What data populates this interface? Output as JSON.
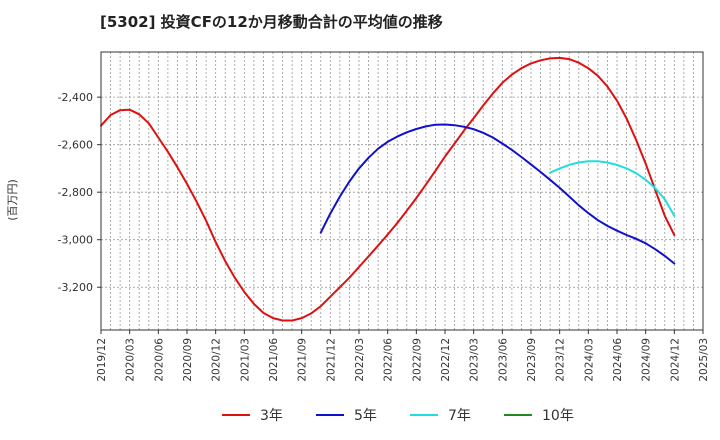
{
  "title": "[5302]  投資CFの12か月移動合計の平均値の推移",
  "chart_data": {
    "type": "line",
    "ylabel": "(百万円)",
    "xlabel": "",
    "ylim": [
      -3380,
      -2210
    ],
    "y_ticks": [
      -2400,
      -2600,
      -2800,
      -3000,
      -3200
    ],
    "y_tick_labels": [
      "-2,400",
      "-2,600",
      "-2,800",
      "-3,000",
      "-3,200"
    ],
    "x_ticks": [
      "2019/12",
      "2020/03",
      "2020/06",
      "2020/09",
      "2020/12",
      "2021/03",
      "2021/06",
      "2021/09",
      "2021/12",
      "2022/03",
      "2022/06",
      "2022/09",
      "2022/12",
      "2023/03",
      "2023/06",
      "2023/09",
      "2023/12",
      "2024/03",
      "2024/06",
      "2024/09",
      "2024/12",
      "2025/03"
    ],
    "grid": true,
    "legend_position": "bottom",
    "series": [
      {
        "name": "3年",
        "color": "#dd1111",
        "x": [
          "2019/12",
          "2020/01",
          "2020/02",
          "2020/03",
          "2020/04",
          "2020/05",
          "2020/06",
          "2020/07",
          "2020/08",
          "2020/09",
          "2020/10",
          "2020/11",
          "2020/12",
          "2021/01",
          "2021/02",
          "2021/03",
          "2021/04",
          "2021/05",
          "2021/06",
          "2021/07",
          "2021/08",
          "2021/09",
          "2021/10",
          "2021/11",
          "2021/12",
          "2022/01",
          "2022/02",
          "2022/03",
          "2022/04",
          "2022/05",
          "2022/06",
          "2022/07",
          "2022/08",
          "2022/09",
          "2022/10",
          "2022/11",
          "2022/12",
          "2023/01",
          "2023/02",
          "2023/03",
          "2023/04",
          "2023/05",
          "2023/06",
          "2023/07",
          "2023/08",
          "2023/09",
          "2023/10",
          "2023/11",
          "2023/12",
          "2024/01",
          "2024/02",
          "2024/03",
          "2024/04",
          "2024/05",
          "2024/06",
          "2024/07",
          "2024/08",
          "2024/09",
          "2024/10",
          "2024/11",
          "2024/12"
        ],
        "values": [
          -2520,
          -2475,
          -2455,
          -2453,
          -2472,
          -2510,
          -2570,
          -2630,
          -2695,
          -2765,
          -2840,
          -2920,
          -3010,
          -3090,
          -3160,
          -3220,
          -3270,
          -3308,
          -3330,
          -3340,
          -3340,
          -3330,
          -3310,
          -3280,
          -3240,
          -3200,
          -3160,
          -3115,
          -3070,
          -3025,
          -2978,
          -2930,
          -2878,
          -2825,
          -2768,
          -2710,
          -2650,
          -2595,
          -2540,
          -2488,
          -2435,
          -2385,
          -2340,
          -2305,
          -2278,
          -2258,
          -2245,
          -2237,
          -2235,
          -2240,
          -2255,
          -2278,
          -2310,
          -2355,
          -2415,
          -2490,
          -2580,
          -2680,
          -2790,
          -2900,
          -2980
        ]
      },
      {
        "name": "5年",
        "color": "#1111cc",
        "x": [
          "2021/11",
          "2021/12",
          "2022/01",
          "2022/02",
          "2022/03",
          "2022/04",
          "2022/05",
          "2022/06",
          "2022/07",
          "2022/08",
          "2022/09",
          "2022/10",
          "2022/11",
          "2022/12",
          "2023/01",
          "2023/02",
          "2023/03",
          "2023/04",
          "2023/05",
          "2023/06",
          "2023/07",
          "2023/08",
          "2023/09",
          "2023/10",
          "2023/11",
          "2023/12",
          "2024/01",
          "2024/02",
          "2024/03",
          "2024/04",
          "2024/05",
          "2024/06",
          "2024/07",
          "2024/08",
          "2024/09",
          "2024/10",
          "2024/11",
          "2024/12"
        ],
        "values": [
          -2970,
          -2890,
          -2818,
          -2755,
          -2700,
          -2655,
          -2617,
          -2588,
          -2566,
          -2548,
          -2534,
          -2523,
          -2516,
          -2515,
          -2518,
          -2525,
          -2535,
          -2550,
          -2570,
          -2595,
          -2622,
          -2652,
          -2683,
          -2715,
          -2748,
          -2782,
          -2818,
          -2855,
          -2888,
          -2918,
          -2942,
          -2962,
          -2980,
          -2996,
          -3015,
          -3040,
          -3068,
          -3100
        ]
      },
      {
        "name": "7年",
        "color": "#22dddd",
        "x": [
          "2023/11",
          "2023/12",
          "2024/01",
          "2024/02",
          "2024/03",
          "2024/04",
          "2024/05",
          "2024/06",
          "2024/07",
          "2024/08",
          "2024/09",
          "2024/10",
          "2024/11",
          "2024/12"
        ],
        "values": [
          -2718,
          -2700,
          -2685,
          -2675,
          -2670,
          -2670,
          -2675,
          -2685,
          -2700,
          -2720,
          -2748,
          -2783,
          -2830,
          -2900
        ]
      },
      {
        "name": "10年",
        "color": "#228822",
        "x": [],
        "values": []
      }
    ]
  }
}
